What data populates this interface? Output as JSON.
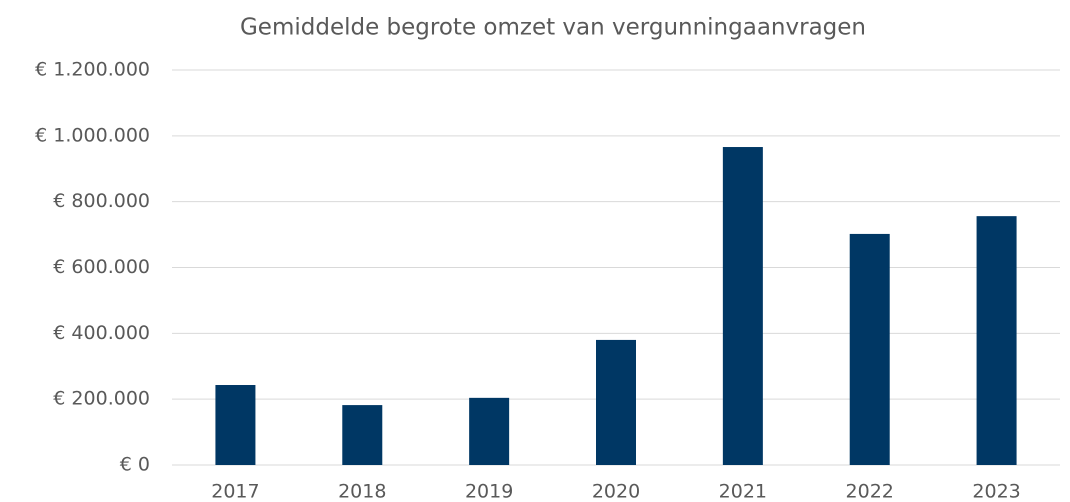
{
  "chart_data": {
    "type": "bar",
    "title": "Gemiddelde begrote omzet van vergunningaanvragen",
    "categories": [
      "2017",
      "2018",
      "2019",
      "2020",
      "2021",
      "2022",
      "2023"
    ],
    "values": [
      243000,
      182000,
      204000,
      380000,
      966000,
      702000,
      756000
    ],
    "color": "#003764",
    "ylim": [
      0,
      1200000
    ],
    "yticks": [
      {
        "value": 0,
        "label": "€ 0"
      },
      {
        "value": 200000,
        "label": "€ 200.000"
      },
      {
        "value": 400000,
        "label": "€ 400.000"
      },
      {
        "value": 600000,
        "label": "€ 600.000"
      },
      {
        "value": 800000,
        "label": "€ 800.000"
      },
      {
        "value": 1000000,
        "label": "€ 1.000.000"
      },
      {
        "value": 1200000,
        "label": "€ 1.200.000"
      }
    ],
    "grid": true
  }
}
